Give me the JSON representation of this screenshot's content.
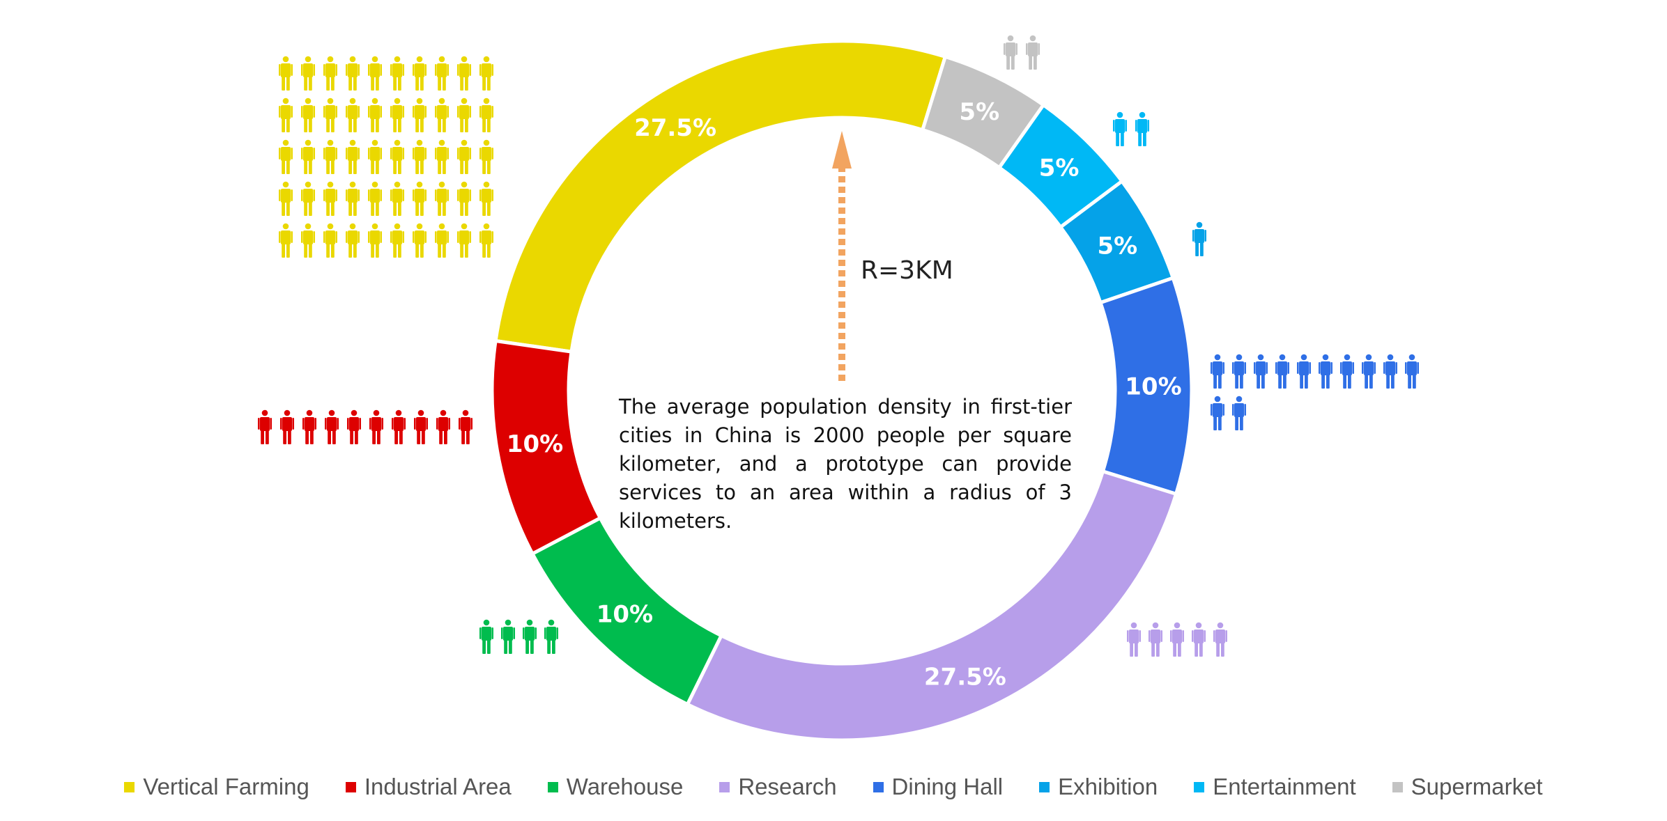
{
  "chart_data": {
    "type": "pie",
    "variant": "donut",
    "radius_label": "R=3KM",
    "annotation": "The average population density in first-tier cities in China is 2000 people per square kilometer, and a prototype can provide services to an area within a radius of 3 kilometers.",
    "legend_position": "bottom",
    "slices": [
      {
        "name": "Vertical Farming",
        "value": 27.5,
        "label": "27.5%",
        "color": "#EAD800",
        "people_icons": 50
      },
      {
        "name": "Supermarket",
        "value": 5,
        "label": "5%",
        "color": "#C3C3C3",
        "people_icons": 2
      },
      {
        "name": "Entertainment",
        "value": 5,
        "label": "5%",
        "color": "#00B8F5",
        "people_icons": 2
      },
      {
        "name": "Exhibition",
        "value": 5,
        "label": "5%",
        "color": "#05A2E8",
        "people_icons": 1
      },
      {
        "name": "Dining Hall",
        "value": 10,
        "label": "10%",
        "color": "#2F6FE6",
        "people_icons": 12
      },
      {
        "name": "Research",
        "value": 27.5,
        "label": "27.5%",
        "color": "#B79EEA",
        "people_icons": 5
      },
      {
        "name": "Warehouse",
        "value": 10,
        "label": "10%",
        "color": "#00BC4E",
        "people_icons": 4
      },
      {
        "name": "Industrial Area",
        "value": 10,
        "label": "10%",
        "color": "#DD0000",
        "people_icons": 10
      }
    ],
    "legend": [
      {
        "label": "Vertical Farming",
        "color": "#EAD800"
      },
      {
        "label": "Industrial Area",
        "color": "#DD0000"
      },
      {
        "label": "Warehouse",
        "color": "#00BC4E"
      },
      {
        "label": "Research",
        "color": "#B79EEA"
      },
      {
        "label": "Dining Hall",
        "color": "#2F6FE6"
      },
      {
        "label": "Exhibition",
        "color": "#05A2E8"
      },
      {
        "label": "Entertainment",
        "color": "#00B8F5"
      },
      {
        "label": "Supermarket",
        "color": "#C3C3C3"
      }
    ],
    "arrow_color": "#F2A460"
  }
}
